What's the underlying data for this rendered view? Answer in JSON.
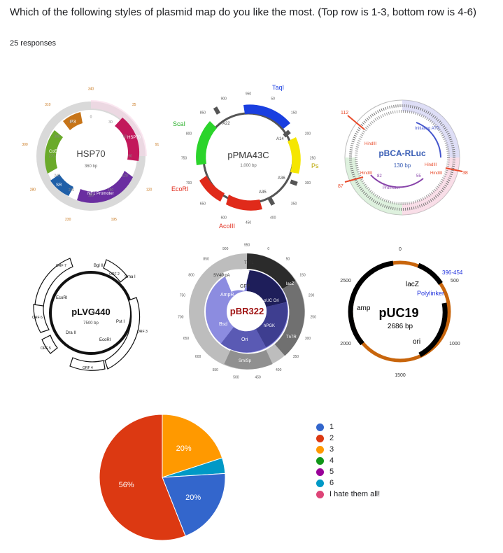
{
  "header": {
    "question": "Which of the following styles of plasmid map do you like the most. (Top row is 1-3, bottom row is 4-6)",
    "responses": "25 responses"
  },
  "maps": {
    "hsp70": {
      "name": "HSP70",
      "size": "360 bp",
      "features": [
        "P3",
        "HSP70",
        "NF1 Promoter",
        "SR",
        "CoE1 Ori"
      ],
      "ticks": [
        "0",
        "30",
        "60",
        "90",
        "120",
        "150",
        "180",
        "210",
        "240",
        "270",
        "300",
        "330"
      ],
      "markers": [
        "340",
        "35",
        "91",
        "120",
        "195",
        "230",
        "280",
        "300",
        "310"
      ]
    },
    "ppma43c": {
      "name": "pPMA43C",
      "size": "1,000 bp",
      "sites": [
        "TaqI",
        "Ps",
        "AcoIII",
        "EcoRI",
        "ScaI"
      ],
      "features": [
        "A22",
        "A14",
        "A36",
        "A35"
      ],
      "ticks": [
        "950",
        "50",
        "150",
        "200",
        "250",
        "300",
        "350",
        "400",
        "450",
        "600",
        "650",
        "700",
        "750",
        "800",
        "850",
        "900"
      ]
    },
    "pbca": {
      "name": "pBCA-RLuc",
      "size": "130 bp",
      "features": [
        "Initiating ATG",
        "Promoter",
        "HindIII",
        "HindIII",
        "HindIII",
        "HindIII"
      ],
      "numbers": [
        "112",
        "38",
        "87",
        "82",
        "55"
      ]
    },
    "plvg": {
      "name": "pLVG440",
      "size": "7500 bp",
      "sites": [
        "Bgl II",
        "Sma I",
        "EcoRI",
        "Pst I",
        "EcoRI",
        "Dra II"
      ],
      "orfs": [
        "ORF 7",
        "ORF 2",
        "ORF 6",
        "ORF 3",
        "ORF 5",
        "ORF 4"
      ]
    },
    "pbr": {
      "name": "pBR322",
      "outer": [
        "SV40 pA",
        "Tn7L",
        "lacZ",
        "Tn7R",
        "Sm/Sp"
      ],
      "inner": [
        "AmpR",
        "GFP",
        "pUC Ori",
        "hPGK",
        "Ori",
        "Bsd"
      ],
      "ticks": [
        "950",
        "0",
        "50",
        "150",
        "200",
        "250",
        "300",
        "350",
        "400",
        "450",
        "500",
        "550",
        "600",
        "650",
        "700",
        "750",
        "800",
        "850",
        "900"
      ]
    },
    "puc": {
      "name": "pUC19",
      "size": "2686 bp",
      "features": [
        "lacZ",
        "Polylinker",
        "396-454",
        "amp",
        "ori"
      ],
      "ticks": [
        "0",
        "500",
        "1000",
        "1500",
        "2000",
        "2500"
      ]
    }
  },
  "legend": [
    {
      "label": "1",
      "color": "#3366cc"
    },
    {
      "label": "2",
      "color": "#dc3912"
    },
    {
      "label": "3",
      "color": "#ff9900"
    },
    {
      "label": "4",
      "color": "#109618"
    },
    {
      "label": "5",
      "color": "#990099"
    },
    {
      "label": "6",
      "color": "#0099c6"
    },
    {
      "label": "I hate them all!",
      "color": "#dd4477"
    }
  ],
  "chart_data": {
    "type": "pie",
    "categories": [
      "1",
      "2",
      "3",
      "4",
      "5",
      "6",
      "I hate them all!"
    ],
    "values": [
      20,
      56,
      20,
      0,
      0,
      4,
      0
    ],
    "slice_labels": [
      "20%",
      "56%",
      "20%",
      "",
      "",
      "",
      ""
    ],
    "colors": [
      "#3366cc",
      "#dc3912",
      "#ff9900",
      "#109618",
      "#990099",
      "#0099c6",
      "#dd4477"
    ],
    "legend_position": "right"
  }
}
